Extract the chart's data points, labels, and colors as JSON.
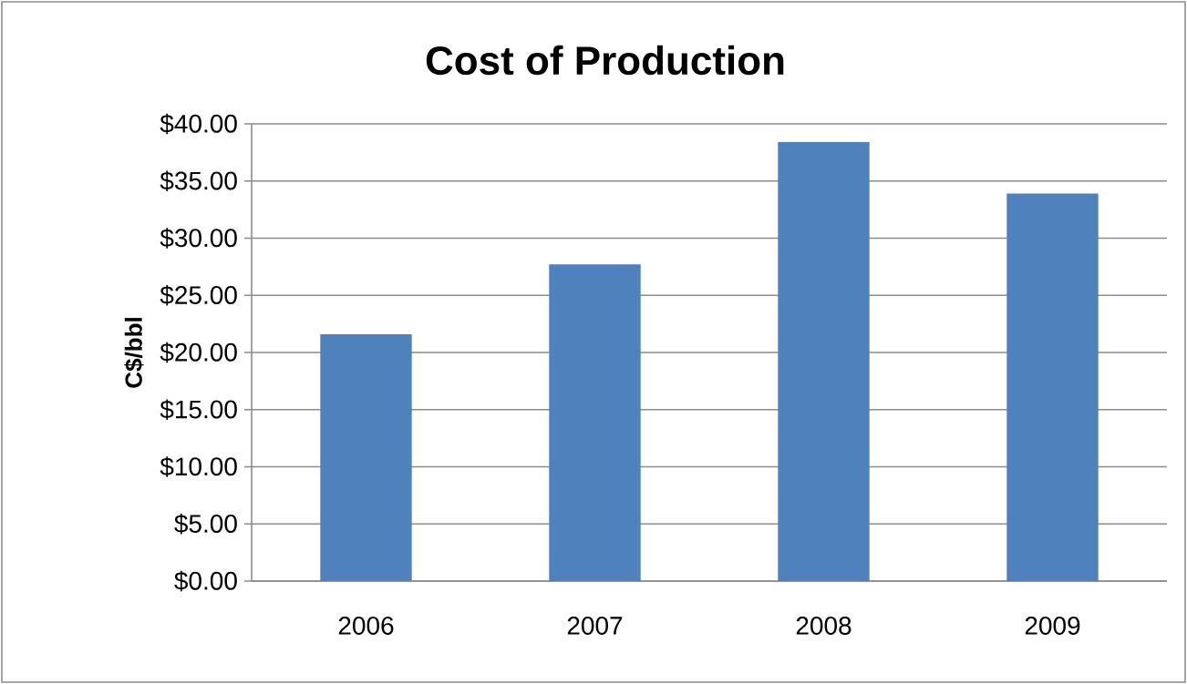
{
  "chart_data": {
    "type": "bar",
    "title": "Cost of Production",
    "ylabel": "C$/bbl",
    "categories": [
      "2006",
      "2007",
      "2008",
      "2009"
    ],
    "values": [
      21.6,
      27.7,
      38.4,
      33.9
    ],
    "color": "#4f81bd",
    "ylim": [
      0,
      40
    ],
    "yticks": [
      {
        "value": 0,
        "label": "$0.00"
      },
      {
        "value": 5,
        "label": "$5.00"
      },
      {
        "value": 10,
        "label": "$10.00"
      },
      {
        "value": 15,
        "label": "$15.00"
      },
      {
        "value": 20,
        "label": "$20.00"
      },
      {
        "value": 25,
        "label": "$25.00"
      },
      {
        "value": 30,
        "label": "$30.00"
      },
      {
        "value": 35,
        "label": "$35.00"
      },
      {
        "value": 40,
        "label": "$40.00"
      }
    ],
    "grid": "y"
  }
}
